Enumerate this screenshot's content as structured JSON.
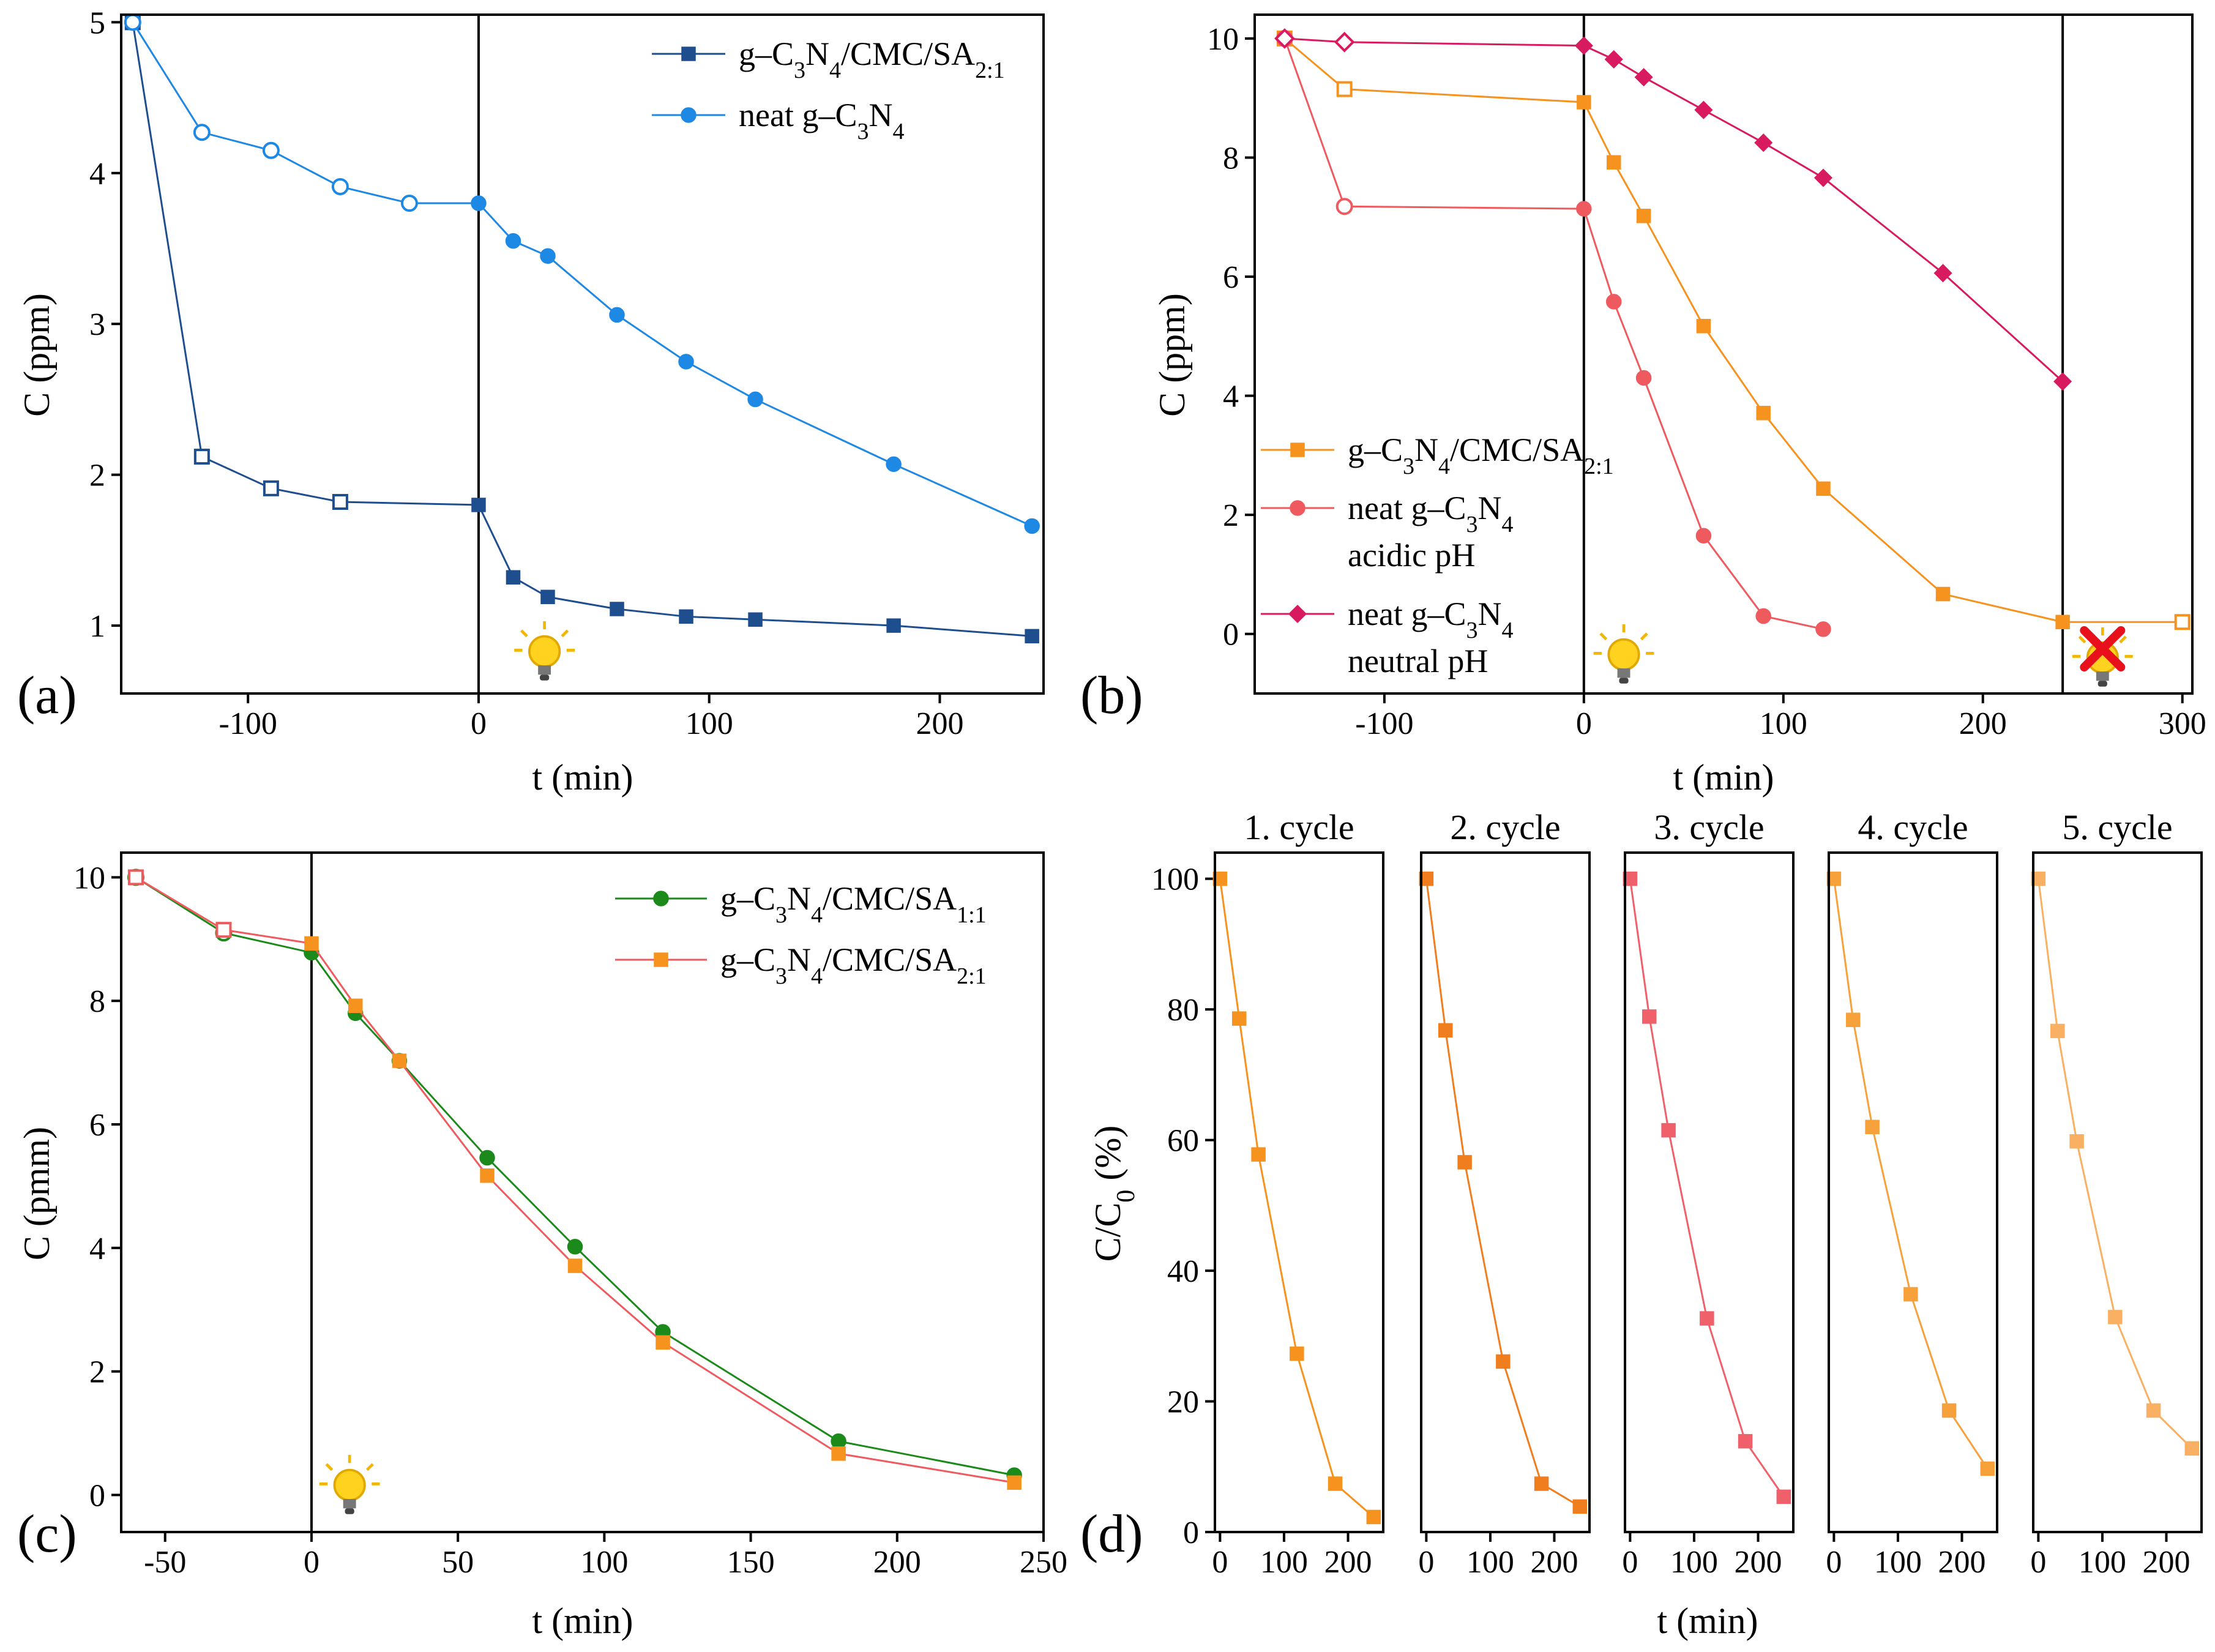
{
  "chart_data": [
    {
      "id": "a",
      "type": "line",
      "panel_label": "(a)",
      "xlabel": "t (min)",
      "ylabel": "C (ppm)",
      "xlim": [
        -155,
        245
      ],
      "ylim": [
        0.55,
        5.05
      ],
      "xticks": [
        -100,
        0,
        100,
        200
      ],
      "yticks": [
        1,
        2,
        3,
        4,
        5
      ],
      "light_on_at": 0,
      "legend_position": "top-right",
      "series": [
        {
          "name": "g–C3N4/CMC/SA2:1",
          "legend": [
            {
              "t": "g–C"
            },
            {
              "t": "3",
              "s": "sub"
            },
            {
              "t": "N"
            },
            {
              "t": "4",
              "s": "sub"
            },
            {
              "t": "/CMC/SA"
            },
            {
              "t": "2:1",
              "s": "sub"
            }
          ],
          "color": "#1f4e8f",
          "marker": "square",
          "x": [
            -150,
            -120,
            -90,
            -60,
            0,
            15,
            30,
            60,
            90,
            120,
            180,
            240
          ],
          "y": [
            5.0,
            2.12,
            1.91,
            1.82,
            1.8,
            1.32,
            1.19,
            1.11,
            1.06,
            1.04,
            1.0,
            0.93
          ],
          "hollow_until": 4
        },
        {
          "name": "neat g–C3N4",
          "legend": [
            {
              "t": "neat g–C"
            },
            {
              "t": "3",
              "s": "sub"
            },
            {
              "t": "N"
            },
            {
              "t": "4",
              "s": "sub"
            }
          ],
          "color": "#1e88e5",
          "marker": "circle",
          "x": [
            -150,
            -120,
            -90,
            -60,
            -30,
            0,
            15,
            30,
            60,
            90,
            120,
            180,
            240
          ],
          "y": [
            5.0,
            4.27,
            4.15,
            3.91,
            3.8,
            3.8,
            3.55,
            3.45,
            3.06,
            2.75,
            2.5,
            2.07,
            1.66
          ],
          "hollow_until": 5
        }
      ]
    },
    {
      "id": "b",
      "type": "line",
      "panel_label": "(b)",
      "xlabel": "t (min)",
      "ylabel": "C (ppm)",
      "xlim": [
        -165,
        305
      ],
      "ylim": [
        -1,
        10.4
      ],
      "xticks": [
        -100,
        0,
        100,
        200,
        300
      ],
      "yticks": [
        0,
        2,
        4,
        6,
        8,
        10
      ],
      "light_on_at": 0,
      "light_off_at": 240,
      "legend_position": "bottom-left",
      "series": [
        {
          "name": "g–C3N4/CMC/SA2:1",
          "legend": [
            {
              "t": "g–C"
            },
            {
              "t": "3",
              "s": "sub"
            },
            {
              "t": "N"
            },
            {
              "t": "4",
              "s": "sub"
            },
            {
              "t": "/CMC/SA"
            },
            {
              "t": "2:1",
              "s": "sub"
            }
          ],
          "color": "#f6921e",
          "marker": "square",
          "x": [
            -150,
            -120,
            0,
            15,
            30,
            60,
            90,
            120,
            180,
            240,
            300
          ],
          "y": [
            10.0,
            9.15,
            8.93,
            7.92,
            7.02,
            5.17,
            3.71,
            2.44,
            0.67,
            0.2,
            0.2
          ],
          "hollow_until": 2,
          "hollow_indices": [
            10
          ]
        },
        {
          "name": "neat g–C3N4 acidic pH",
          "legend": [
            {
              "t": "neat g–C"
            },
            {
              "t": "3",
              "s": "sub"
            },
            {
              "t": "N"
            },
            {
              "t": "4",
              "s": "sub"
            }
          ],
          "legend_line2": "acidic pH",
          "color": "#ef5a5f",
          "marker": "circle",
          "x": [
            -150,
            -120,
            0,
            15,
            30,
            60,
            90,
            120
          ],
          "y": [
            10.0,
            7.18,
            7.14,
            5.58,
            4.3,
            1.65,
            0.3,
            0.08
          ],
          "hollow_until": 2
        },
        {
          "name": "neat g–C3N4 neutral pH",
          "legend": [
            {
              "t": "neat g–C"
            },
            {
              "t": "3",
              "s": "sub"
            },
            {
              "t": "N"
            },
            {
              "t": "4",
              "s": "sub"
            }
          ],
          "legend_line2": "neutral pH",
          "color": "#d81b60",
          "marker": "diamond",
          "x": [
            -150,
            -120,
            0,
            15,
            30,
            60,
            90,
            120,
            180,
            240
          ],
          "y": [
            10.0,
            9.94,
            9.88,
            9.65,
            9.35,
            8.8,
            8.25,
            7.66,
            6.06,
            4.24
          ],
          "hollow_until": 2
        }
      ]
    },
    {
      "id": "c",
      "type": "line",
      "panel_label": "(c)",
      "xlabel": "t (min)",
      "ylabel": "C (pmm)",
      "xlim": [
        -65,
        250
      ],
      "ylim": [
        -0.6,
        10.4
      ],
      "xticks": [
        -50,
        0,
        50,
        100,
        150,
        200,
        250
      ],
      "yticks": [
        0,
        2,
        4,
        6,
        8,
        10
      ],
      "light_on_at": 0,
      "legend_position": "top-right",
      "series": [
        {
          "name": "g–C3N4/CMC/SA1:1",
          "legend": [
            {
              "t": "g–C"
            },
            {
              "t": "3",
              "s": "sub"
            },
            {
              "t": "N"
            },
            {
              "t": "4",
              "s": "sub"
            },
            {
              "t": "/CMC/SA"
            },
            {
              "t": "1:1",
              "s": "sub"
            }
          ],
          "color": "#1b8a1b",
          "marker": "circle",
          "x": [
            -60,
            -30,
            0,
            15,
            30,
            60,
            90,
            120,
            180,
            240
          ],
          "y": [
            10.0,
            9.1,
            8.78,
            7.8,
            7.03,
            5.46,
            4.02,
            2.64,
            0.87,
            0.32
          ],
          "hollow_until": 2
        },
        {
          "name": "g–C3N4/CMC/SA2:1",
          "legend": [
            {
              "t": "g–C"
            },
            {
              "t": "3",
              "s": "sub"
            },
            {
              "t": "N"
            },
            {
              "t": "4",
              "s": "sub"
            },
            {
              "t": "/CMC/SA"
            },
            {
              "t": "2:1",
              "s": "sub"
            }
          ],
          "color": "#f6921e",
          "line_color": "#ef5a5f",
          "marker": "square",
          "x": [
            -60,
            -30,
            0,
            15,
            30,
            60,
            90,
            120,
            180,
            240
          ],
          "y": [
            10.0,
            9.15,
            8.93,
            7.92,
            7.03,
            5.17,
            3.71,
            2.47,
            0.67,
            0.2
          ],
          "hollow_until": 2,
          "hollow_color": "#ef5a5f"
        }
      ]
    },
    {
      "id": "d",
      "type": "line",
      "panel_label": "(d)",
      "xlabel": "t (min)",
      "ylabel": "C/C0 (%)",
      "ylabel_main": "C/C",
      "ylabel_sub": "0",
      "ylabel_tail": " (%)",
      "xlim": [
        -8,
        255
      ],
      "ylim": [
        0,
        104
      ],
      "xticks": [
        0,
        100,
        200
      ],
      "yticks": [
        0,
        20,
        40,
        60,
        80,
        100
      ],
      "cycles": [
        {
          "title": "1. cycle",
          "color": "#f6921e",
          "x": [
            0,
            30,
            60,
            120,
            180,
            240
          ],
          "y": [
            100,
            78.6,
            57.8,
            27.3,
            7.4,
            2.3
          ]
        },
        {
          "title": "2. cycle",
          "color": "#f07d1e",
          "x": [
            0,
            30,
            60,
            120,
            180,
            240
          ],
          "y": [
            100,
            76.8,
            56.6,
            26.1,
            7.4,
            3.9
          ]
        },
        {
          "title": "3. cycle",
          "color": "#f0606b",
          "x": [
            0,
            30,
            60,
            120,
            180,
            240
          ],
          "y": [
            100,
            78.9,
            61.5,
            32.7,
            13.9,
            5.4
          ]
        },
        {
          "title": "4. cycle",
          "color": "#f7a13a",
          "x": [
            0,
            30,
            60,
            120,
            180,
            240
          ],
          "y": [
            100,
            78.4,
            62.0,
            36.4,
            18.6,
            9.7
          ]
        },
        {
          "title": "5. cycle",
          "color": "#f9b062",
          "x": [
            0,
            30,
            60,
            120,
            180,
            240
          ],
          "y": [
            100,
            76.7,
            59.8,
            32.9,
            18.6,
            12.8
          ]
        }
      ]
    }
  ]
}
